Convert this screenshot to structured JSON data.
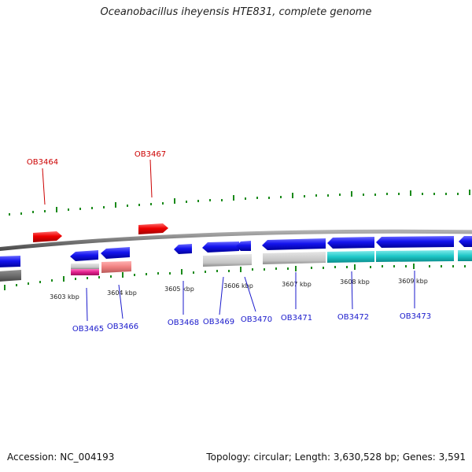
{
  "title": "Oceanobacillus iheyensis HTE831, complete genome",
  "footer": {
    "accession": "Accession: NC_004193",
    "topology": "Topology: circular; Length: 3,630,528 bp; Genes: 3,591"
  },
  "colors": {
    "forward_gene": "#e00000",
    "reverse_gene": "#1a1aee",
    "gray_feature": "#c0c0c0",
    "cyan_feature": "#19c8c8",
    "magenta_feature": "#e0208c",
    "pink_feature": "#f08080",
    "tick": "#1a8a1a",
    "backbone": "#777777",
    "label_forward": "#cc0000",
    "label_reverse": "#1a1acc"
  },
  "scale_labels": [
    "3603 kbp",
    "3604 kbp",
    "3605 kbp",
    "3606 kbp",
    "3607 kbp",
    "3608 kbp",
    "3609 kbp"
  ],
  "gene_labels_forward": [
    "OB3464",
    "OB3467"
  ],
  "gene_labels_reverse": [
    "OB3465",
    "OB3466",
    "OB3468",
    "OB3469",
    "OB3470",
    "OB3471",
    "OB3472",
    "OB3473"
  ]
}
